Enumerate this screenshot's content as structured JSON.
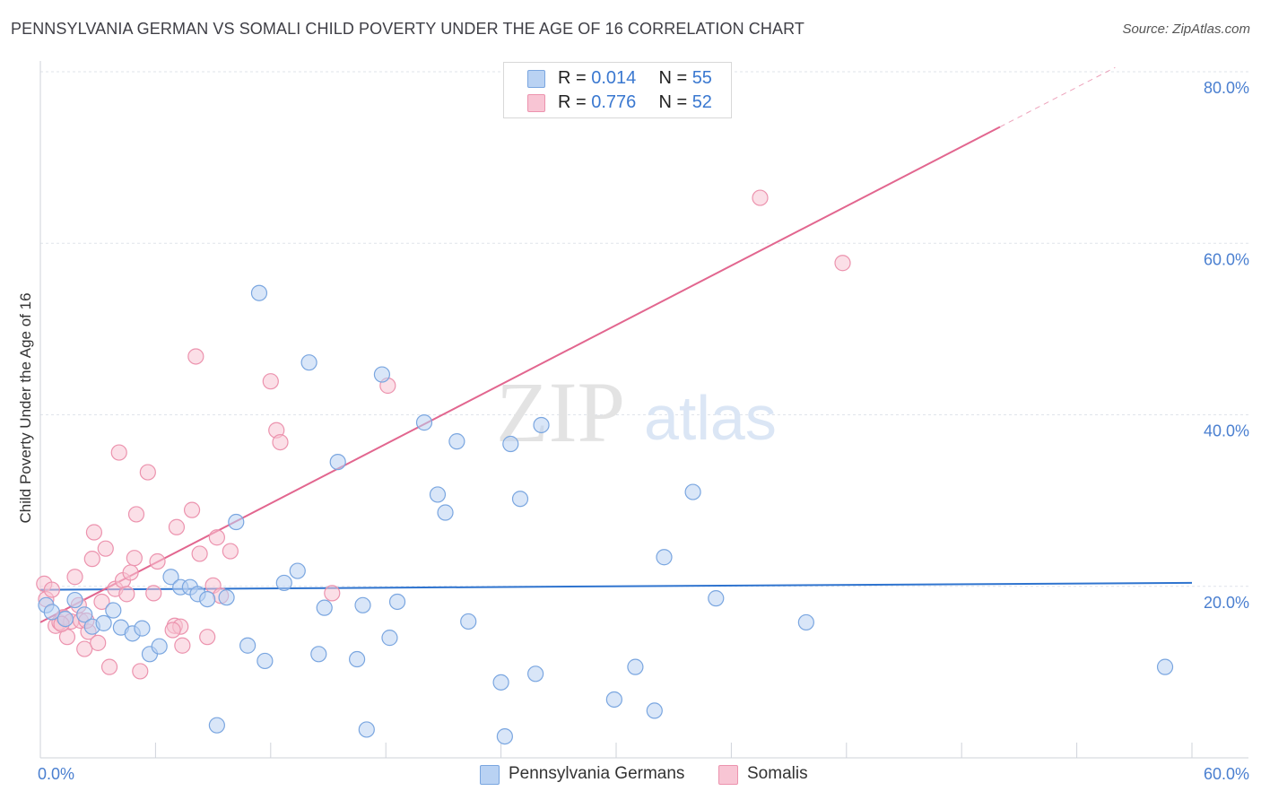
{
  "title": "PENNSYLVANIA GERMAN VS SOMALI CHILD POVERTY UNDER THE AGE OF 16 CORRELATION CHART",
  "source": "Source: ZipAtlas.com",
  "watermark": {
    "zip": "ZIP",
    "atlas": "atlas"
  },
  "legend": {
    "r_label": "R =",
    "n_label": "N =",
    "rows": [
      {
        "r": "0.014",
        "n": "55"
      },
      {
        "r": "0.776",
        "n": "52"
      }
    ]
  },
  "bottom_legend": [
    "Pennsylvania Germans",
    "Somalis"
  ],
  "colors": {
    "blue_fill": "#b9d2f3",
    "blue_stroke": "#7aa6e0",
    "blue_line": "#2f74cf",
    "pink_fill": "#f8c5d4",
    "pink_stroke": "#ec93ae",
    "pink_line": "#e2668f",
    "grid": "#dfe3ea",
    "axis_text": "#4a7fd0"
  },
  "chart_data": {
    "type": "scatter",
    "title": "PENNSYLVANIA GERMAN VS SOMALI CHILD POVERTY UNDER THE AGE OF 16 CORRELATION CHART",
    "xlabel": "",
    "ylabel": "Child Poverty Under the Age of 16",
    "xlim": [
      0,
      60
    ],
    "ylim": [
      0,
      80
    ],
    "x_tick_labels": [
      "0.0%",
      "60.0%"
    ],
    "y_tick_labels": [
      "20.0%",
      "40.0%",
      "60.0%",
      "80.0%"
    ],
    "y_ticks": [
      20,
      40,
      60,
      80
    ],
    "series": [
      {
        "name": "Pennsylvania Germans",
        "r": 0.014,
        "n": 55,
        "trend": {
          "x0": 0,
          "y0": 19.6,
          "x1": 60,
          "y1": 20.4,
          "dashed_from": null
        },
        "points": [
          [
            0.3,
            17.8
          ],
          [
            1.3,
            16.2
          ],
          [
            1.8,
            18.4
          ],
          [
            2.3,
            16.7
          ],
          [
            2.7,
            15.3
          ],
          [
            3.3,
            15.7
          ],
          [
            3.8,
            17.2
          ],
          [
            4.2,
            15.2
          ],
          [
            4.8,
            14.5
          ],
          [
            5.3,
            15.1
          ],
          [
            5.7,
            12.1
          ],
          [
            6.2,
            13.0
          ],
          [
            6.8,
            21.1
          ],
          [
            7.3,
            19.9
          ],
          [
            7.8,
            19.9
          ],
          [
            8.2,
            19.1
          ],
          [
            8.7,
            18.5
          ],
          [
            9.2,
            3.8
          ],
          [
            9.7,
            18.7
          ],
          [
            10.2,
            27.5
          ],
          [
            10.8,
            13.1
          ],
          [
            11.4,
            54.2
          ],
          [
            11.7,
            11.3
          ],
          [
            12.7,
            20.4
          ],
          [
            13.4,
            21.8
          ],
          [
            14.0,
            46.1
          ],
          [
            14.5,
            12.1
          ],
          [
            14.8,
            17.5
          ],
          [
            15.5,
            34.5
          ],
          [
            16.5,
            11.5
          ],
          [
            16.8,
            17.8
          ],
          [
            17.0,
            3.3
          ],
          [
            17.8,
            44.7
          ],
          [
            18.2,
            14.0
          ],
          [
            18.6,
            18.2
          ],
          [
            20.0,
            39.1
          ],
          [
            20.7,
            30.7
          ],
          [
            21.1,
            28.6
          ],
          [
            21.7,
            36.9
          ],
          [
            22.3,
            15.9
          ],
          [
            24.0,
            8.8
          ],
          [
            24.2,
            2.5
          ],
          [
            24.5,
            36.6
          ],
          [
            25.0,
            30.2
          ],
          [
            25.8,
            9.8
          ],
          [
            26.1,
            38.8
          ],
          [
            29.9,
            6.8
          ],
          [
            31.0,
            10.6
          ],
          [
            32.0,
            5.5
          ],
          [
            32.5,
            23.4
          ],
          [
            34.0,
            31.0
          ],
          [
            35.2,
            18.6
          ],
          [
            39.9,
            15.8
          ],
          [
            58.6,
            10.6
          ],
          [
            0.6,
            17.0
          ]
        ]
      },
      {
        "name": "Somalis",
        "r": 0.776,
        "n": 52,
        "trend": {
          "x0": 0,
          "y0": 15.8,
          "x1": 56,
          "y1": 80.5,
          "dashed_from": 50
        },
        "points": [
          [
            0.2,
            20.3
          ],
          [
            0.3,
            18.5
          ],
          [
            0.6,
            19.6
          ],
          [
            0.8,
            15.4
          ],
          [
            1.0,
            15.8
          ],
          [
            1.2,
            16.4
          ],
          [
            1.4,
            14.1
          ],
          [
            1.6,
            15.9
          ],
          [
            1.8,
            21.1
          ],
          [
            2.0,
            17.8
          ],
          [
            2.1,
            16.0
          ],
          [
            2.3,
            12.7
          ],
          [
            2.5,
            14.7
          ],
          [
            2.7,
            23.2
          ],
          [
            2.8,
            26.3
          ],
          [
            3.0,
            13.4
          ],
          [
            3.2,
            18.2
          ],
          [
            3.4,
            24.4
          ],
          [
            3.6,
            10.6
          ],
          [
            3.9,
            19.7
          ],
          [
            4.1,
            35.6
          ],
          [
            4.3,
            20.7
          ],
          [
            4.5,
            19.1
          ],
          [
            4.7,
            21.6
          ],
          [
            4.9,
            23.3
          ],
          [
            5.0,
            28.4
          ],
          [
            5.2,
            10.1
          ],
          [
            5.6,
            33.3
          ],
          [
            5.9,
            19.2
          ],
          [
            6.1,
            22.9
          ],
          [
            7.0,
            15.4
          ],
          [
            7.1,
            26.9
          ],
          [
            7.4,
            13.1
          ],
          [
            7.9,
            28.9
          ],
          [
            8.1,
            46.8
          ],
          [
            8.3,
            23.8
          ],
          [
            8.7,
            14.1
          ],
          [
            9.0,
            20.1
          ],
          [
            9.2,
            25.7
          ],
          [
            9.4,
            18.9
          ],
          [
            9.9,
            24.1
          ],
          [
            12.0,
            43.9
          ],
          [
            12.3,
            38.2
          ],
          [
            12.5,
            36.8
          ],
          [
            15.2,
            19.2
          ],
          [
            18.1,
            43.4
          ],
          [
            37.5,
            65.3
          ],
          [
            41.8,
            57.7
          ],
          [
            7.3,
            15.3
          ],
          [
            2.4,
            16.0
          ],
          [
            1.1,
            15.6
          ],
          [
            6.9,
            14.9
          ]
        ]
      }
    ]
  }
}
